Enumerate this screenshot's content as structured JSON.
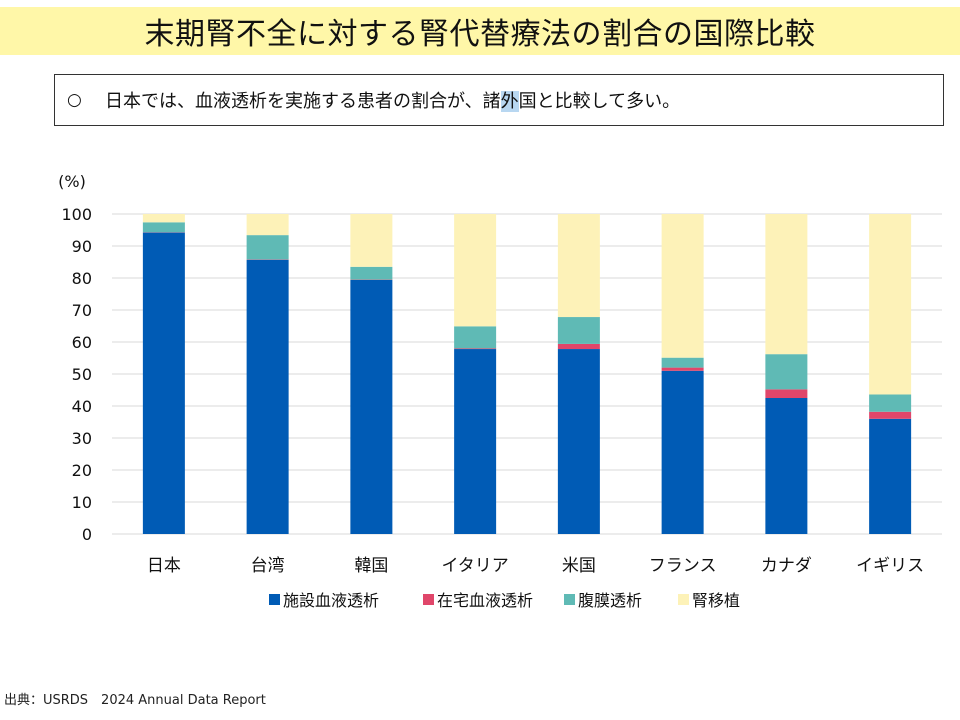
{
  "title": "末期腎不全に対する腎代替療法の割合の国際比較",
  "summary": {
    "bullet": "○",
    "text_before": "日本では、血液透析を実施する患者の割合が、諸",
    "text_highlight": "外",
    "text_after": "国と比較して多い。"
  },
  "source": "出典：USRDS　2024 Annual Data Report",
  "chart_data": {
    "type": "bar",
    "stacked": true,
    "unit_label": "(%)",
    "ylim": [
      0,
      100
    ],
    "yticks": [
      0,
      10,
      20,
      30,
      40,
      50,
      60,
      70,
      80,
      90,
      100
    ],
    "grid": true,
    "legend_position": "bottom",
    "categories": [
      "日本",
      "台湾",
      "韓国",
      "イタリア",
      "米国",
      "フランス",
      "カナダ",
      "イギリス"
    ],
    "series": [
      {
        "name": "施設血液透析",
        "color": "#005bb5",
        "values": [
          94.2,
          85.7,
          79.4,
          57.8,
          57.8,
          51.0,
          42.5,
          36.0
        ]
      },
      {
        "name": "在宅血液透析",
        "color": "#e0466a",
        "values": [
          0.1,
          0.1,
          0.1,
          0.2,
          1.6,
          1.0,
          2.7,
          2.2
        ]
      },
      {
        "name": "腹膜透析",
        "color": "#5fbab5",
        "values": [
          3.1,
          7.6,
          4.0,
          6.9,
          8.4,
          3.1,
          11.0,
          5.4
        ]
      },
      {
        "name": "腎移植",
        "color": "#fdf2b8",
        "values": [
          2.6,
          6.6,
          16.5,
          35.1,
          32.2,
          44.9,
          43.8,
          56.4
        ]
      }
    ]
  }
}
